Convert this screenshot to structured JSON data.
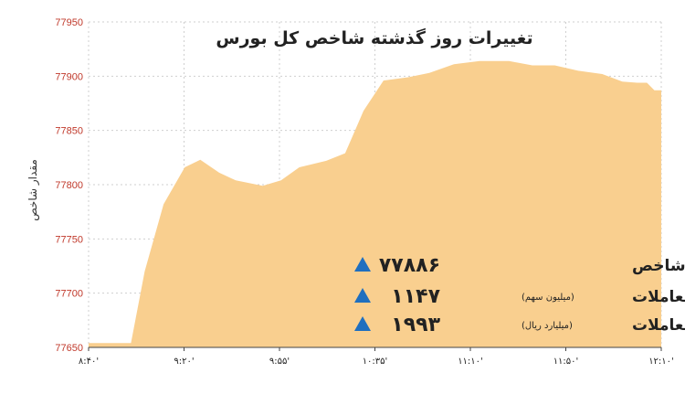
{
  "chart_data": {
    "type": "area",
    "title": "تغییرات روز گذشته شاخص کل بورس",
    "ylabel": "مقدار شاخص",
    "xlabel": "",
    "ylim": [
      77650,
      77950
    ],
    "yticks": [
      "77950",
      "77900",
      "77850",
      "77800",
      "77750",
      "77700",
      "77650"
    ],
    "xticks": [
      "۸:۴۰'",
      "۹:۲۰'",
      "۹:۵۵'",
      "۱۰:۳۵'",
      "۱۱:۱۰'",
      "۱۱:۵۰'",
      "۱۲:۱۰'"
    ],
    "grid": true,
    "fill_color": "#f9cf8f",
    "points": [
      {
        "x": 0.0,
        "y": 77654
      },
      {
        "x": 0.074,
        "y": 77654
      },
      {
        "x": 0.098,
        "y": 77720
      },
      {
        "x": 0.131,
        "y": 77782
      },
      {
        "x": 0.168,
        "y": 77816
      },
      {
        "x": 0.195,
        "y": 77823
      },
      {
        "x": 0.228,
        "y": 77811
      },
      {
        "x": 0.257,
        "y": 77804
      },
      {
        "x": 0.304,
        "y": 77799
      },
      {
        "x": 0.336,
        "y": 77804
      },
      {
        "x": 0.368,
        "y": 77816
      },
      {
        "x": 0.415,
        "y": 77822
      },
      {
        "x": 0.448,
        "y": 77829
      },
      {
        "x": 0.48,
        "y": 77868
      },
      {
        "x": 0.515,
        "y": 77896
      },
      {
        "x": 0.558,
        "y": 77899
      },
      {
        "x": 0.595,
        "y": 77903
      },
      {
        "x": 0.638,
        "y": 77911
      },
      {
        "x": 0.683,
        "y": 77914
      },
      {
        "x": 0.734,
        "y": 77914
      },
      {
        "x": 0.775,
        "y": 77910
      },
      {
        "x": 0.814,
        "y": 77910
      },
      {
        "x": 0.855,
        "y": 77905
      },
      {
        "x": 0.897,
        "y": 77902
      },
      {
        "x": 0.932,
        "y": 77895
      },
      {
        "x": 0.958,
        "y": 77894
      },
      {
        "x": 0.975,
        "y": 77894
      },
      {
        "x": 0.988,
        "y": 77887
      },
      {
        "x": 1.0,
        "y": 77887
      }
    ]
  },
  "stats": [
    {
      "label": "شاخص",
      "sub": "",
      "value": "۷۷۸۸۶"
    },
    {
      "label": "حجم معاملات",
      "sub": "(میلیون سهم)",
      "value": "۱۱۴۷"
    },
    {
      "label": "ارزش معاملات",
      "sub": "(میلیارد ریال)",
      "value": "۱۹۹۳"
    }
  ],
  "colors": {
    "area": "#f9cf8f",
    "gridline": "#cfcfcf",
    "ytick": "#c0392b",
    "arrow": "#1f6fbf",
    "text": "#222222"
  },
  "icons": {
    "trend": "triangle-up-icon"
  }
}
